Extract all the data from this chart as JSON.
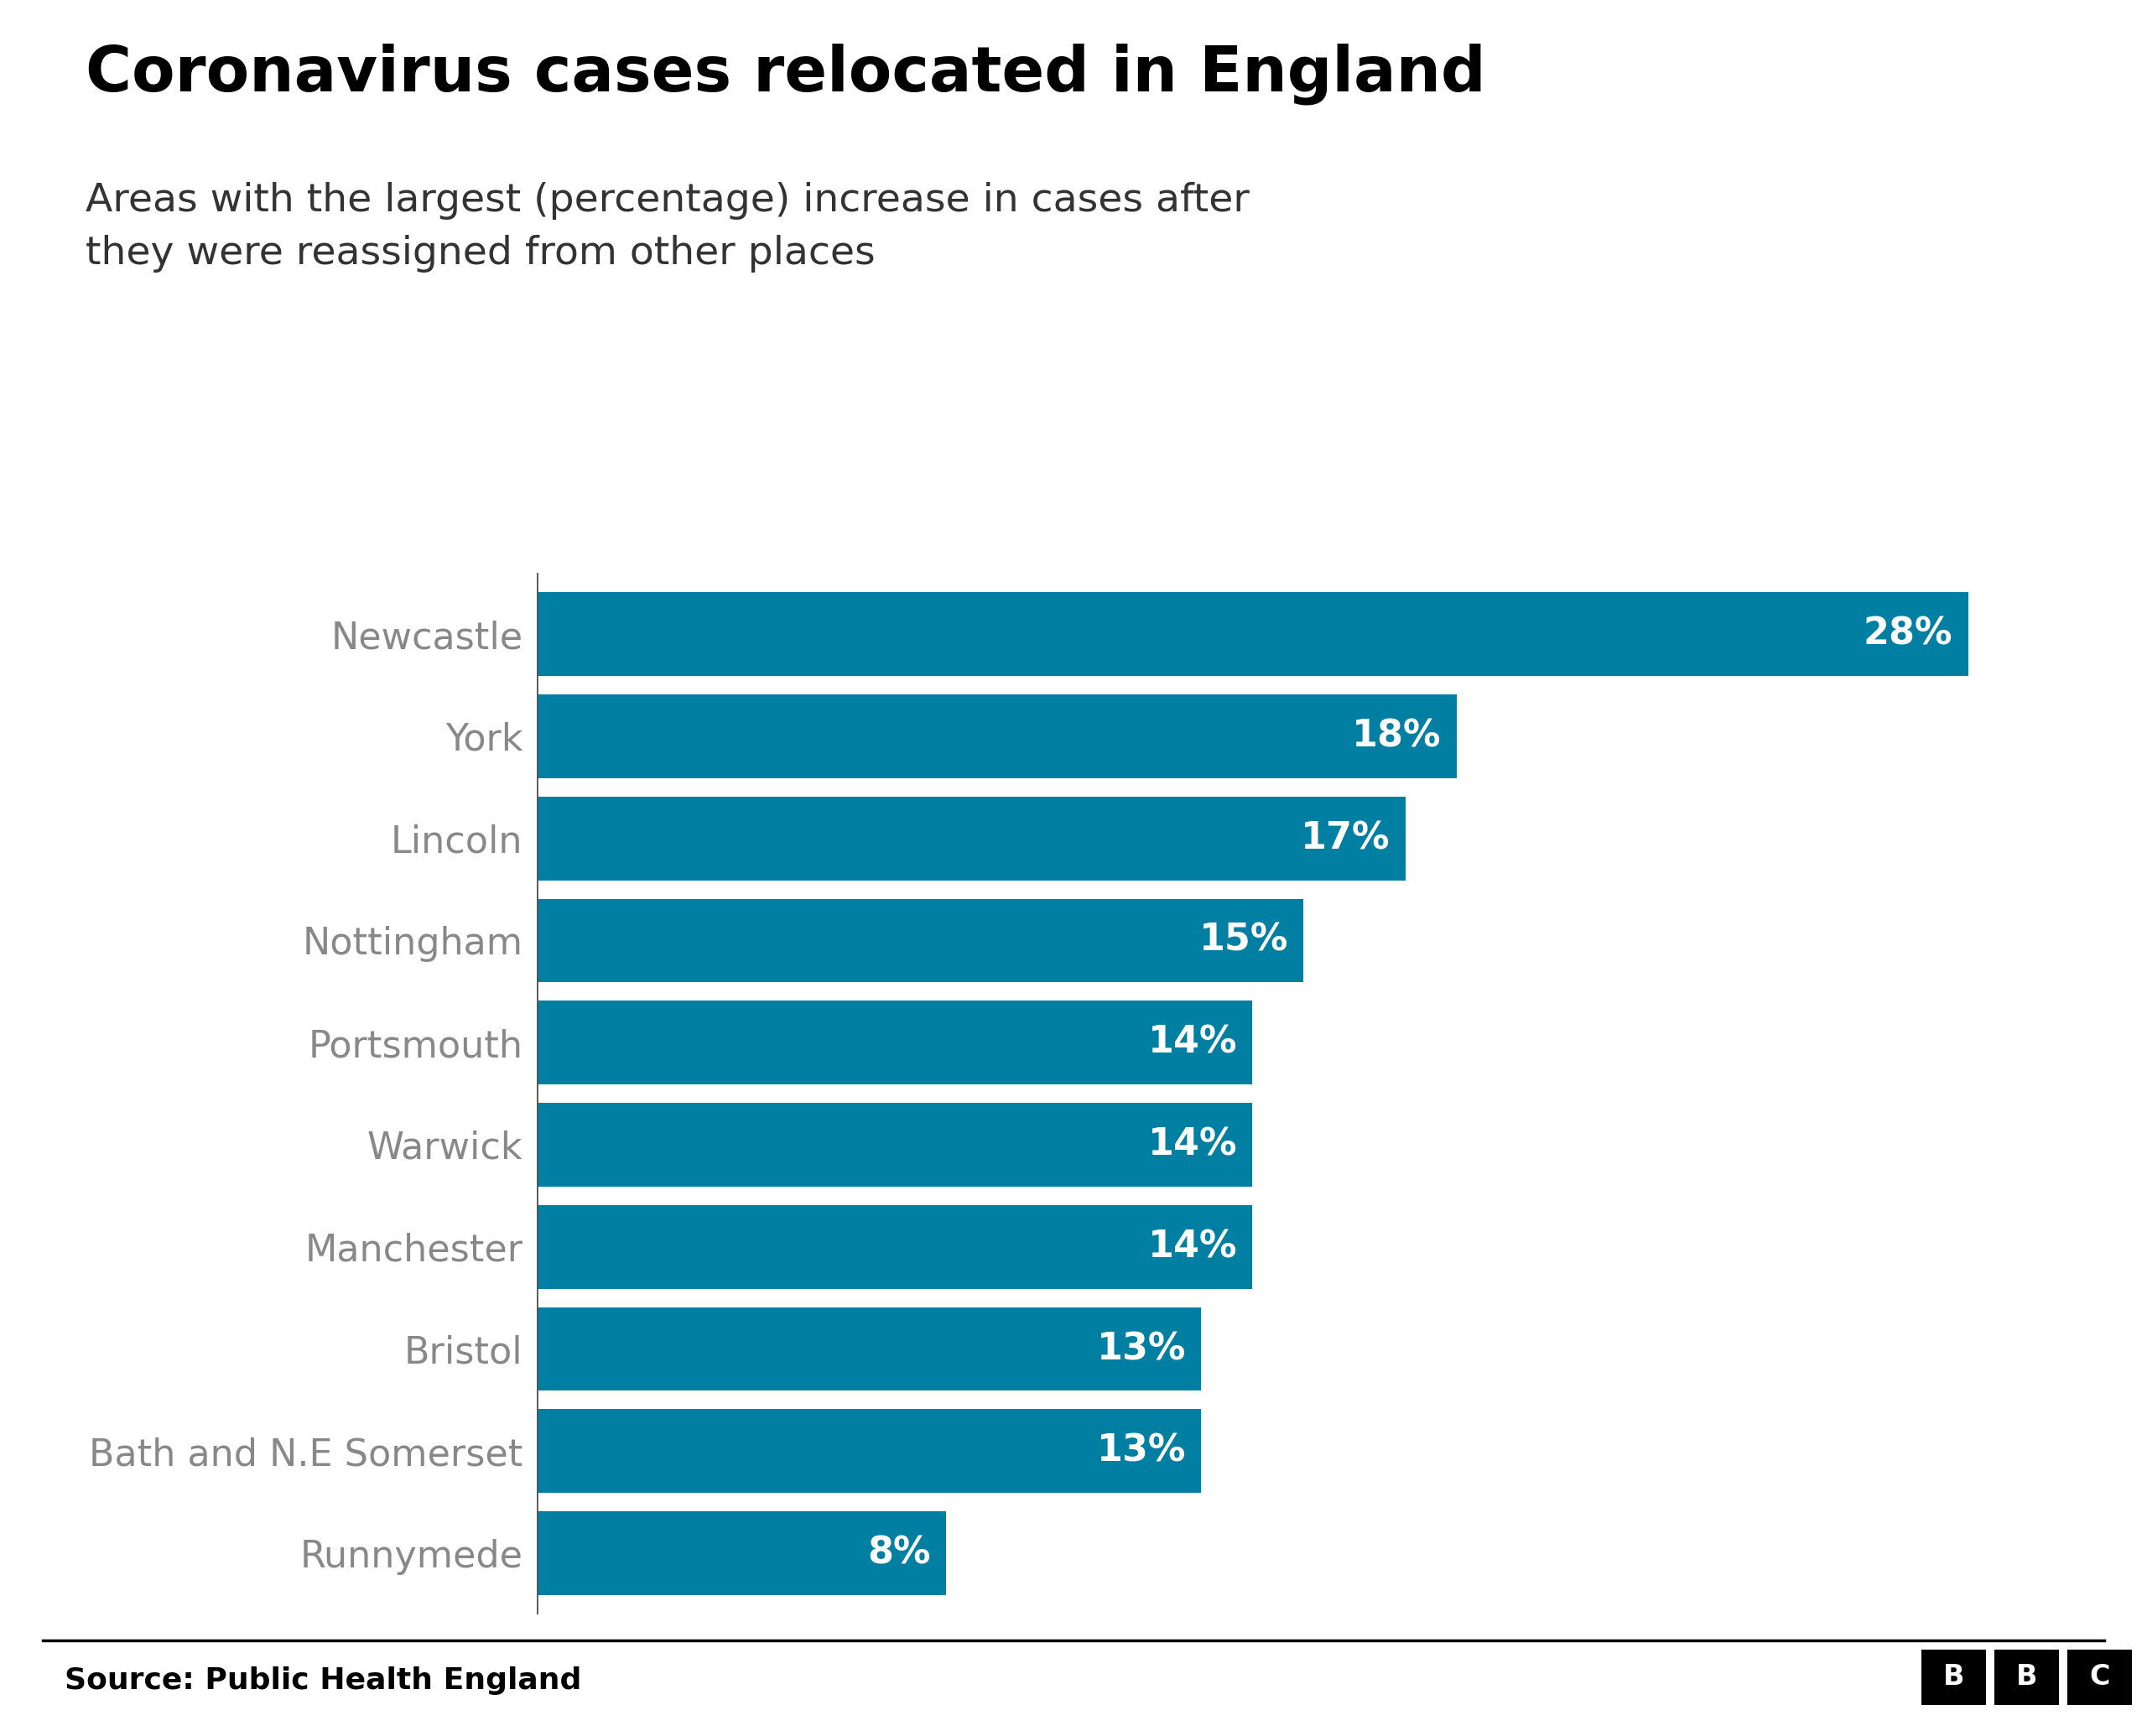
{
  "title": "Coronavirus cases relocated in England",
  "subtitle": "Areas with the largest (percentage) increase in cases after\nthey were reassigned from other places",
  "categories": [
    "Newcastle",
    "York",
    "Lincoln",
    "Nottingham",
    "Portsmouth",
    "Warwick",
    "Manchester",
    "Bristol",
    "Bath and N.E Somerset",
    "Runnymede"
  ],
  "values": [
    28,
    18,
    17,
    15,
    14,
    14,
    14,
    13,
    13,
    8
  ],
  "bar_color": "#007fa3",
  "label_color": "#ffffff",
  "category_color": "#888888",
  "title_color": "#000000",
  "subtitle_color": "#333333",
  "source_text": "Source: Public Health England",
  "source_color": "#000000",
  "background_color": "#ffffff",
  "bar_gap": 0.18,
  "title_fontsize": 54,
  "subtitle_fontsize": 34,
  "label_fontsize": 32,
  "category_fontsize": 32,
  "source_fontsize": 26
}
